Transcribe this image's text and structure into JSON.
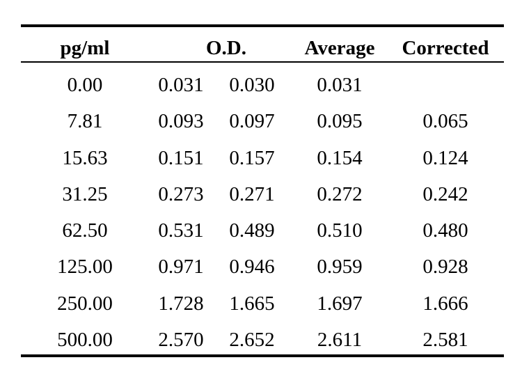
{
  "table": {
    "headers": {
      "concentration": "pg/ml",
      "od": "O.D.",
      "average": "Average",
      "corrected": "Corrected"
    },
    "rows": [
      {
        "conc": "0.00",
        "od1": "0.031",
        "od2": "0.030",
        "avg": "0.031",
        "corr": ""
      },
      {
        "conc": "7.81",
        "od1": "0.093",
        "od2": "0.097",
        "avg": "0.095",
        "corr": "0.065"
      },
      {
        "conc": "15.63",
        "od1": "0.151",
        "od2": "0.157",
        "avg": "0.154",
        "corr": "0.124"
      },
      {
        "conc": "31.25",
        "od1": "0.273",
        "od2": "0.271",
        "avg": "0.272",
        "corr": "0.242"
      },
      {
        "conc": "62.50",
        "od1": "0.531",
        "od2": "0.489",
        "avg": "0.510",
        "corr": "0.480"
      },
      {
        "conc": "125.00",
        "od1": "0.971",
        "od2": "0.946",
        "avg": "0.959",
        "corr": "0.928"
      },
      {
        "conc": "250.00",
        "od1": "1.728",
        "od2": "1.665",
        "avg": "1.697",
        "corr": "1.666"
      },
      {
        "conc": "500.00",
        "od1": "2.570",
        "od2": "2.652",
        "avg": "2.611",
        "corr": "2.581"
      }
    ]
  }
}
